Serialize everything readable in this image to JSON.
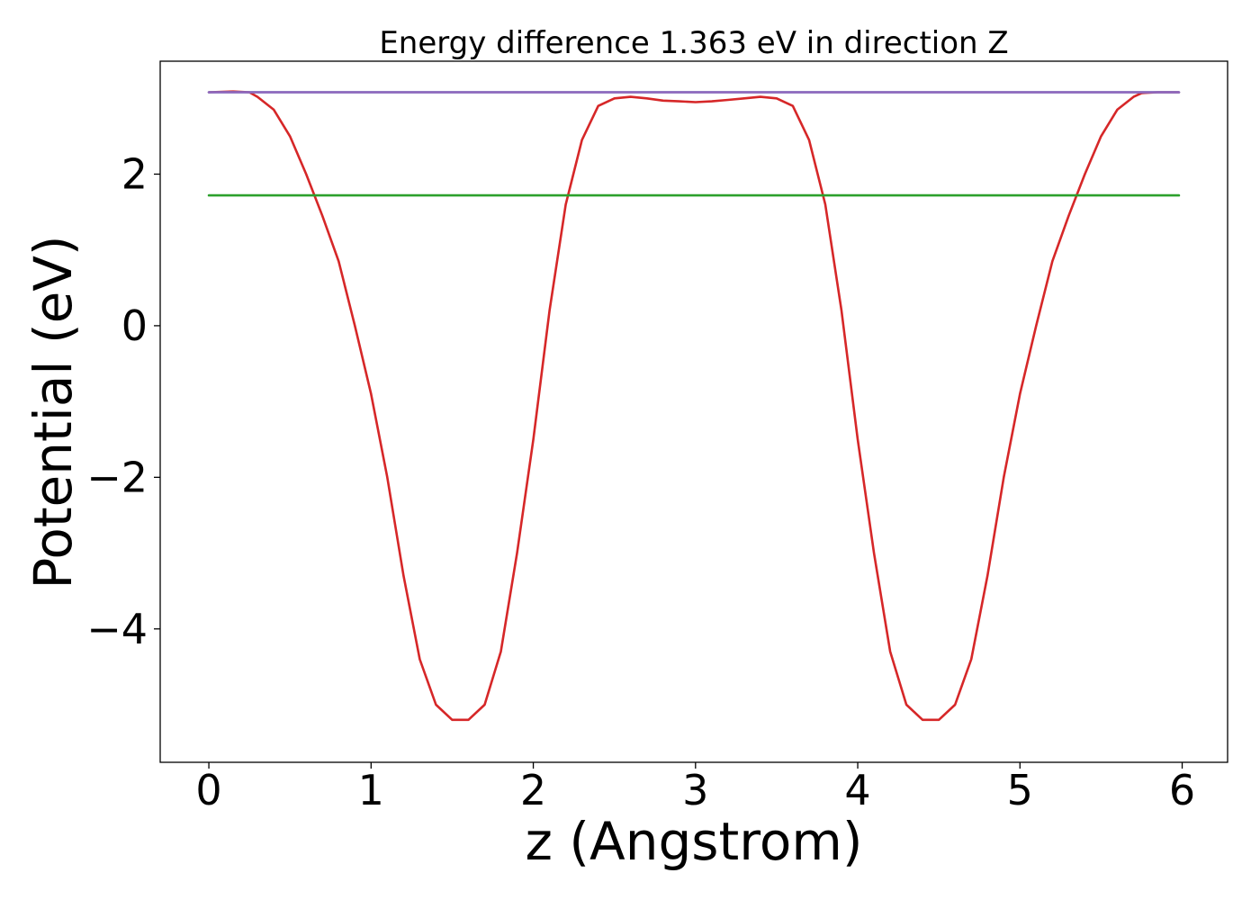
{
  "chart_data": {
    "type": "line",
    "title": "Energy difference 1.363 eV in direction Z",
    "xlabel": "z (Angstrom)",
    "ylabel": "Potential (eV)",
    "xlim": [
      -0.3,
      6.28
    ],
    "ylim": [
      -5.76,
      3.49
    ],
    "xticks": [
      0,
      1,
      2,
      3,
      4,
      5,
      6
    ],
    "yticks": [
      -4,
      -2,
      0,
      2
    ],
    "grid": false,
    "legend": "none",
    "series": [
      {
        "color": "#d62728",
        "x": [
          0,
          0.15,
          0.25,
          0.3,
          0.4,
          0.5,
          0.6,
          0.7,
          0.8,
          0.9,
          1.0,
          1.1,
          1.2,
          1.3,
          1.4,
          1.5,
          1.6,
          1.7,
          1.8,
          1.9,
          2.0,
          2.1,
          2.2,
          2.3,
          2.4,
          2.5,
          2.6,
          2.7,
          2.8,
          2.9,
          3.0,
          3.1,
          3.2,
          3.3,
          3.4,
          3.5,
          3.6,
          3.7,
          3.8,
          3.9,
          4.0,
          4.1,
          4.2,
          4.3,
          4.4,
          4.5,
          4.6,
          4.7,
          4.8,
          4.9,
          5.0,
          5.1,
          5.2,
          5.3,
          5.4,
          5.5,
          5.6,
          5.7,
          5.75,
          5.85,
          5.98
        ],
        "y": [
          3.08,
          3.09,
          3.08,
          3.02,
          2.85,
          2.5,
          2.0,
          1.45,
          0.85,
          0.0,
          -0.9,
          -2.0,
          -3.3,
          -4.4,
          -5.0,
          -5.2,
          -5.2,
          -5.0,
          -4.3,
          -3.0,
          -1.5,
          0.2,
          1.6,
          2.45,
          2.9,
          3.0,
          3.02,
          3.0,
          2.97,
          2.96,
          2.95,
          2.96,
          2.98,
          3.0,
          3.02,
          3.0,
          2.9,
          2.45,
          1.6,
          0.2,
          -1.5,
          -3.0,
          -4.3,
          -5.0,
          -5.2,
          -5.2,
          -5.0,
          -4.4,
          -3.3,
          -2.0,
          -0.9,
          0.0,
          0.85,
          1.45,
          2.0,
          2.5,
          2.85,
          3.02,
          3.07,
          3.08,
          3.08
        ]
      },
      {
        "color": "#1f77b4",
        "x": [
          0,
          5.98
        ],
        "y": [
          3.08,
          3.08
        ]
      },
      {
        "color": "#2ca02c",
        "x": [
          0,
          5.98
        ],
        "y": [
          1.72,
          1.72
        ]
      },
      {
        "color": "#9467bd",
        "x": [
          0,
          0.25,
          5.75,
          5.98
        ],
        "y": [
          3.08,
          3.08,
          3.08,
          3.08
        ]
      }
    ]
  }
}
